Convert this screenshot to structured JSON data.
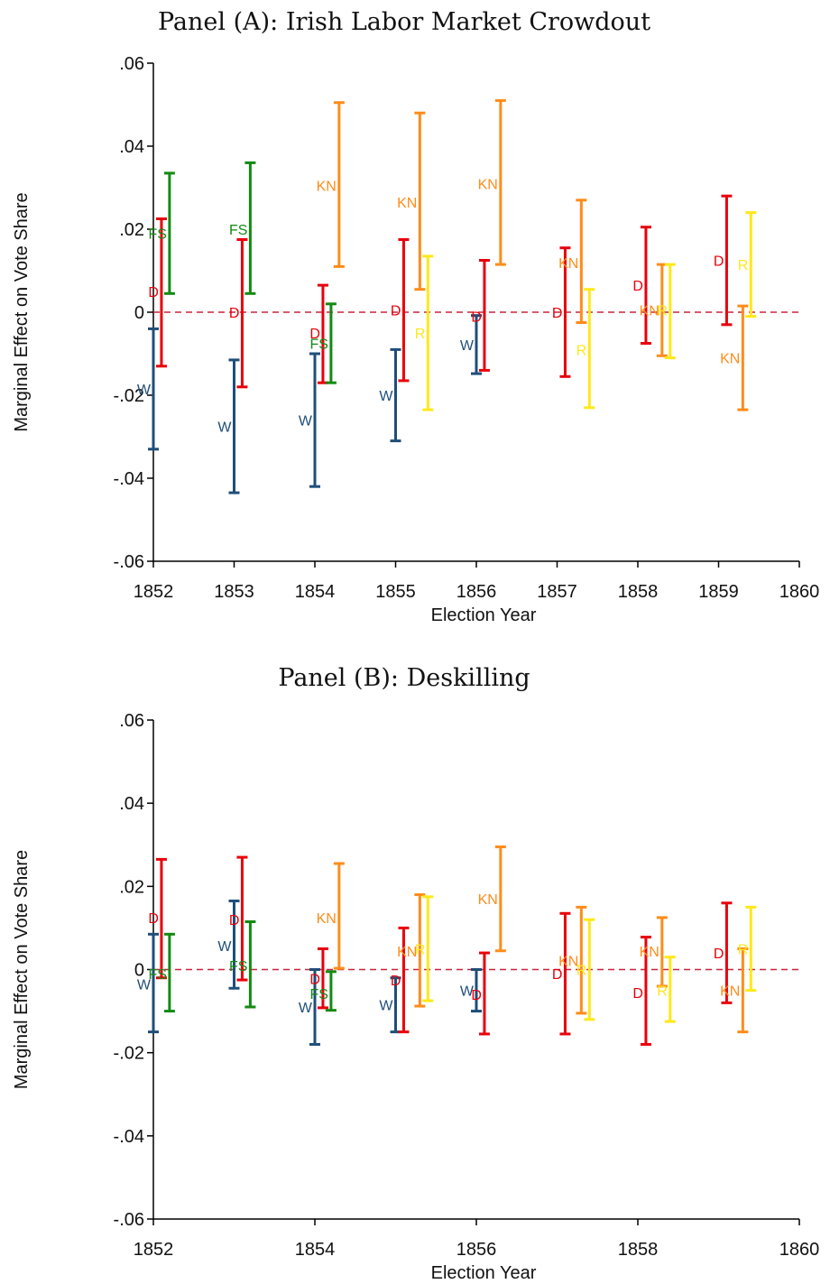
{
  "figure": {
    "colors": {
      "W": "#1f4e79",
      "D": "#e8000b",
      "FS": "#138a13",
      "KN": "#ff8c1a",
      "R": "#ffe81a",
      "zero_line": "#c8253c",
      "axis": "#000000"
    }
  },
  "chart_data": [
    {
      "type": "errorbar",
      "title": "Panel (A): Irish Labor Market Crowdout",
      "xlabel": "Election Year",
      "ylabel": "Marginal Effect on Vote Share",
      "xlim": [
        1852,
        1860
      ],
      "ylim": [
        -0.06,
        0.06
      ],
      "xticks": [
        1852,
        1853,
        1854,
        1855,
        1856,
        1857,
        1858,
        1859,
        1860
      ],
      "xtick_labels": [
        "1852",
        "1853",
        "1854",
        "1855",
        "1856",
        "1857",
        "1858",
        "1859",
        "1860"
      ],
      "yticks": [
        -0.06,
        -0.04,
        -0.02,
        0,
        0.02,
        0.04,
        0.06
      ],
      "ytick_labels": [
        "-.06",
        "-.04",
        "-.02",
        "0",
        ".02",
        ".04",
        ".06"
      ],
      "reference_line": 0,
      "grid": false,
      "points": [
        {
          "party": "W",
          "x": 1852.0,
          "y": -0.0185,
          "lo": -0.033,
          "hi": -0.004
        },
        {
          "party": "D",
          "x": 1852.1,
          "y": 0.005,
          "lo": -0.013,
          "hi": 0.0225
        },
        {
          "party": "FS",
          "x": 1852.2,
          "y": 0.019,
          "lo": 0.0045,
          "hi": 0.0335
        },
        {
          "party": "W",
          "x": 1853.0,
          "y": -0.0275,
          "lo": -0.0435,
          "hi": -0.0115
        },
        {
          "party": "D",
          "x": 1853.1,
          "y": 0.0,
          "lo": -0.018,
          "hi": 0.0175
        },
        {
          "party": "FS",
          "x": 1853.2,
          "y": 0.02,
          "lo": 0.0045,
          "hi": 0.036
        },
        {
          "party": "W",
          "x": 1854.0,
          "y": -0.026,
          "lo": -0.042,
          "hi": -0.01
        },
        {
          "party": "D",
          "x": 1854.1,
          "y": -0.005,
          "lo": -0.017,
          "hi": 0.0065
        },
        {
          "party": "FS",
          "x": 1854.2,
          "y": -0.0075,
          "lo": -0.017,
          "hi": 0.002
        },
        {
          "party": "KN",
          "x": 1854.3,
          "y": 0.0305,
          "lo": 0.011,
          "hi": 0.0505
        },
        {
          "party": "W",
          "x": 1855.0,
          "y": -0.02,
          "lo": -0.031,
          "hi": -0.009
        },
        {
          "party": "D",
          "x": 1855.1,
          "y": 0.0005,
          "lo": -0.0165,
          "hi": 0.0175
        },
        {
          "party": "KN",
          "x": 1855.3,
          "y": 0.0265,
          "lo": 0.0055,
          "hi": 0.048
        },
        {
          "party": "R",
          "x": 1855.4,
          "y": -0.005,
          "lo": -0.0235,
          "hi": 0.0135
        },
        {
          "party": "W",
          "x": 1856.0,
          "y": -0.0078,
          "lo": -0.0148,
          "hi": -0.0008
        },
        {
          "party": "D",
          "x": 1856.1,
          "y": -0.001,
          "lo": -0.014,
          "hi": 0.0125
        },
        {
          "party": "KN",
          "x": 1856.3,
          "y": 0.031,
          "lo": 0.0115,
          "hi": 0.051
        },
        {
          "party": "D",
          "x": 1857.1,
          "y": 0.0,
          "lo": -0.0155,
          "hi": 0.0155
        },
        {
          "party": "KN",
          "x": 1857.3,
          "y": 0.012,
          "lo": -0.0025,
          "hi": 0.027
        },
        {
          "party": "R",
          "x": 1857.4,
          "y": -0.009,
          "lo": -0.023,
          "hi": 0.0055
        },
        {
          "party": "D",
          "x": 1858.1,
          "y": 0.0065,
          "lo": -0.0075,
          "hi": 0.0205
        },
        {
          "party": "KN",
          "x": 1858.3,
          "y": 0.0005,
          "lo": -0.0105,
          "hi": 0.0115
        },
        {
          "party": "R",
          "x": 1858.4,
          "y": 0.0005,
          "lo": -0.011,
          "hi": 0.0115
        },
        {
          "party": "D",
          "x": 1859.1,
          "y": 0.0125,
          "lo": -0.003,
          "hi": 0.028
        },
        {
          "party": "KN",
          "x": 1859.3,
          "y": -0.011,
          "lo": -0.0235,
          "hi": 0.0015
        },
        {
          "party": "R",
          "x": 1859.4,
          "y": 0.0115,
          "lo": -0.001,
          "hi": 0.024
        }
      ]
    },
    {
      "type": "errorbar",
      "title": "Panel (B): Deskilling",
      "xlabel": "Election Year",
      "ylabel": "Marginal Effect on Vote Share",
      "xlim": [
        1852,
        1860
      ],
      "ylim": [
        -0.06,
        0.06
      ],
      "xticks": [
        1852,
        1854,
        1856,
        1858,
        1860
      ],
      "xtick_labels": [
        "1852",
        "1854",
        "1856",
        "1858",
        "1860"
      ],
      "yticks": [
        -0.06,
        -0.04,
        -0.02,
        0,
        0.02,
        0.04,
        0.06
      ],
      "ytick_labels": [
        "-.06",
        "-.04",
        "-.02",
        "0",
        ".02",
        ".04",
        ".06"
      ],
      "reference_line": 0,
      "grid": false,
      "points": [
        {
          "party": "W",
          "x": 1852.0,
          "y": -0.0035,
          "lo": -0.015,
          "hi": 0.0085
        },
        {
          "party": "D",
          "x": 1852.1,
          "y": 0.0125,
          "lo": -0.002,
          "hi": 0.0265
        },
        {
          "party": "FS",
          "x": 1852.2,
          "y": -0.001,
          "lo": -0.01,
          "hi": 0.0085
        },
        {
          "party": "W",
          "x": 1853.0,
          "y": 0.0058,
          "lo": -0.0045,
          "hi": 0.0165
        },
        {
          "party": "D",
          "x": 1853.1,
          "y": 0.012,
          "lo": -0.0025,
          "hi": 0.027
        },
        {
          "party": "FS",
          "x": 1853.2,
          "y": 0.001,
          "lo": -0.009,
          "hi": 0.0115
        },
        {
          "party": "W",
          "x": 1854.0,
          "y": -0.009,
          "lo": -0.018,
          "hi": 0.0
        },
        {
          "party": "D",
          "x": 1854.1,
          "y": -0.0022,
          "lo": -0.0092,
          "hi": 0.005
        },
        {
          "party": "FS",
          "x": 1854.2,
          "y": -0.0058,
          "lo": -0.0098,
          "hi": -0.0005
        },
        {
          "party": "KN",
          "x": 1854.3,
          "y": 0.0125,
          "lo": 0.0003,
          "hi": 0.0255
        },
        {
          "party": "W",
          "x": 1855.0,
          "y": -0.0085,
          "lo": -0.015,
          "hi": -0.002
        },
        {
          "party": "D",
          "x": 1855.1,
          "y": -0.0025,
          "lo": -0.015,
          "hi": 0.01
        },
        {
          "party": "KN",
          "x": 1855.3,
          "y": 0.0045,
          "lo": -0.0088,
          "hi": 0.018
        },
        {
          "party": "R",
          "x": 1855.4,
          "y": 0.005,
          "lo": -0.0075,
          "hi": 0.0175
        },
        {
          "party": "W",
          "x": 1856.0,
          "y": -0.005,
          "lo": -0.01,
          "hi": 0.0
        },
        {
          "party": "D",
          "x": 1856.1,
          "y": -0.006,
          "lo": -0.0155,
          "hi": 0.004
        },
        {
          "party": "KN",
          "x": 1856.3,
          "y": 0.017,
          "lo": 0.0045,
          "hi": 0.0295
        },
        {
          "party": "D",
          "x": 1857.1,
          "y": -0.001,
          "lo": -0.0155,
          "hi": 0.0135
        },
        {
          "party": "KN",
          "x": 1857.3,
          "y": 0.0022,
          "lo": -0.0105,
          "hi": 0.015
        },
        {
          "party": "R",
          "x": 1857.4,
          "y": 0.0,
          "lo": -0.012,
          "hi": 0.012
        },
        {
          "party": "D",
          "x": 1858.1,
          "y": -0.0055,
          "lo": -0.018,
          "hi": 0.0078
        },
        {
          "party": "KN",
          "x": 1858.3,
          "y": 0.0045,
          "lo": -0.004,
          "hi": 0.0125
        },
        {
          "party": "R",
          "x": 1858.4,
          "y": -0.005,
          "lo": -0.0125,
          "hi": 0.003
        },
        {
          "party": "D",
          "x": 1859.1,
          "y": 0.004,
          "lo": -0.008,
          "hi": 0.016
        },
        {
          "party": "KN",
          "x": 1859.3,
          "y": -0.005,
          "lo": -0.015,
          "hi": 0.005
        },
        {
          "party": "R",
          "x": 1859.4,
          "y": 0.005,
          "lo": -0.005,
          "hi": 0.015
        }
      ]
    }
  ]
}
